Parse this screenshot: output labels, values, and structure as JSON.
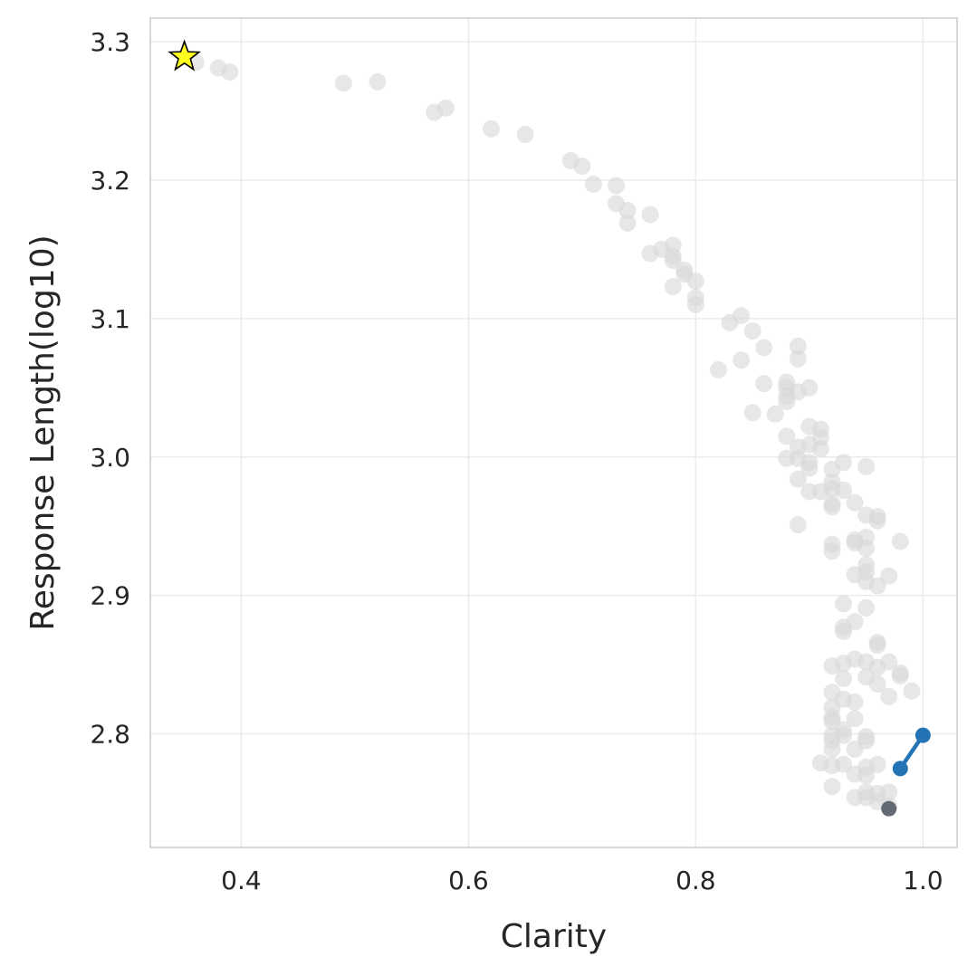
{
  "chart_data": {
    "type": "scatter",
    "title": "",
    "xlabel": "Clarity",
    "ylabel": "Response Length(log10)",
    "xlim": [
      0.32,
      1.03
    ],
    "ylim": [
      2.718,
      3.317
    ],
    "xticks": [
      0.4,
      0.6,
      0.8,
      1.0
    ],
    "xtick_labels": [
      "0.4",
      "0.6",
      "0.8",
      "1.0"
    ],
    "yticks": [
      2.8,
      2.9,
      3.0,
      3.1,
      3.2,
      3.3
    ],
    "ytick_labels": [
      "2.8",
      "2.9",
      "3.0",
      "3.1",
      "3.2",
      "3.3"
    ],
    "grid": true,
    "legend": "none",
    "series": [
      {
        "role": "background",
        "color": "#d9d9d9",
        "points": [
          [
            0.36,
            3.285
          ],
          [
            0.38,
            3.281
          ],
          [
            0.39,
            3.278
          ],
          [
            0.49,
            3.27
          ],
          [
            0.52,
            3.271
          ],
          [
            0.57,
            3.249
          ],
          [
            0.58,
            3.252
          ],
          [
            0.62,
            3.237
          ],
          [
            0.65,
            3.233
          ],
          [
            0.69,
            3.214
          ],
          [
            0.7,
            3.21
          ],
          [
            0.71,
            3.197
          ],
          [
            0.73,
            3.196
          ],
          [
            0.73,
            3.183
          ],
          [
            0.74,
            3.178
          ],
          [
            0.74,
            3.169
          ],
          [
            0.76,
            3.175
          ],
          [
            0.76,
            3.147
          ],
          [
            0.77,
            3.15
          ],
          [
            0.78,
            3.153
          ],
          [
            0.78,
            3.145
          ],
          [
            0.78,
            3.142
          ],
          [
            0.78,
            3.123
          ],
          [
            0.79,
            3.135
          ],
          [
            0.79,
            3.132
          ],
          [
            0.8,
            3.127
          ],
          [
            0.8,
            3.115
          ],
          [
            0.8,
            3.11
          ],
          [
            0.83,
            3.097
          ],
          [
            0.84,
            3.102
          ],
          [
            0.84,
            3.07
          ],
          [
            0.85,
            3.091
          ],
          [
            0.86,
            3.079
          ],
          [
            0.82,
            3.063
          ],
          [
            0.86,
            3.053
          ],
          [
            0.88,
            3.054
          ],
          [
            0.88,
            3.05
          ],
          [
            0.88,
            3.044
          ],
          [
            0.88,
            3.04
          ],
          [
            0.89,
            3.08
          ],
          [
            0.89,
            3.071
          ],
          [
            0.89,
            3.047
          ],
          [
            0.9,
            3.05
          ],
          [
            0.85,
            3.032
          ],
          [
            0.87,
            3.031
          ],
          [
            0.88,
            3.015
          ],
          [
            0.89,
            3.007
          ],
          [
            0.88,
            2.999
          ],
          [
            0.89,
            2.999
          ],
          [
            0.9,
            3.022
          ],
          [
            0.9,
            3.009
          ],
          [
            0.9,
            2.996
          ],
          [
            0.9,
            2.992
          ],
          [
            0.91,
            3.02
          ],
          [
            0.91,
            3.014
          ],
          [
            0.91,
            3.006
          ],
          [
            0.89,
            2.984
          ],
          [
            0.9,
            2.975
          ],
          [
            0.91,
            2.975
          ],
          [
            0.92,
            2.991
          ],
          [
            0.92,
            2.982
          ],
          [
            0.92,
            2.977
          ],
          [
            0.92,
            2.966
          ],
          [
            0.92,
            2.964
          ],
          [
            0.93,
            2.996
          ],
          [
            0.93,
            2.976
          ],
          [
            0.95,
            2.993
          ],
          [
            0.94,
            2.967
          ],
          [
            0.95,
            2.958
          ],
          [
            0.96,
            2.957
          ],
          [
            0.96,
            2.954
          ],
          [
            0.89,
            2.951
          ],
          [
            0.98,
            2.939
          ],
          [
            0.92,
            2.937
          ],
          [
            0.92,
            2.932
          ],
          [
            0.94,
            2.94
          ],
          [
            0.94,
            2.938
          ],
          [
            0.95,
            2.942
          ],
          [
            0.95,
            2.934
          ],
          [
            0.95,
            2.922
          ],
          [
            0.95,
            2.917
          ],
          [
            0.94,
            2.915
          ],
          [
            0.95,
            2.91
          ],
          [
            0.96,
            2.907
          ],
          [
            0.97,
            2.914
          ],
          [
            0.93,
            2.894
          ],
          [
            0.95,
            2.891
          ],
          [
            0.94,
            2.881
          ],
          [
            0.93,
            2.877
          ],
          [
            0.93,
            2.874
          ],
          [
            0.96,
            2.866
          ],
          [
            0.96,
            2.864
          ],
          [
            0.92,
            2.849
          ],
          [
            0.93,
            2.851
          ],
          [
            0.94,
            2.854
          ],
          [
            0.95,
            2.852
          ],
          [
            0.96,
            2.848
          ],
          [
            0.97,
            2.852
          ],
          [
            0.98,
            2.844
          ],
          [
            0.98,
            2.842
          ],
          [
            0.93,
            2.84
          ],
          [
            0.95,
            2.841
          ],
          [
            0.96,
            2.836
          ],
          [
            0.92,
            2.83
          ],
          [
            0.93,
            2.825
          ],
          [
            0.94,
            2.823
          ],
          [
            0.97,
            2.827
          ],
          [
            0.99,
            2.831
          ],
          [
            0.92,
            2.819
          ],
          [
            0.92,
            2.812
          ],
          [
            0.92,
            2.809
          ],
          [
            0.94,
            2.811
          ],
          [
            0.93,
            2.803
          ],
          [
            0.93,
            2.799
          ],
          [
            0.92,
            2.799
          ],
          [
            0.92,
            2.795
          ],
          [
            0.95,
            2.798
          ],
          [
            0.95,
            2.795
          ],
          [
            0.92,
            2.789
          ],
          [
            0.94,
            2.789
          ],
          [
            0.91,
            2.779
          ],
          [
            0.92,
            2.777
          ],
          [
            0.93,
            2.778
          ],
          [
            0.95,
            2.776
          ],
          [
            0.96,
            2.778
          ],
          [
            0.94,
            2.771
          ],
          [
            0.95,
            2.77
          ],
          [
            0.92,
            2.762
          ],
          [
            0.95,
            2.758
          ],
          [
            0.96,
            2.757
          ],
          [
            0.97,
            2.758
          ],
          [
            0.94,
            2.754
          ],
          [
            0.95,
            2.754
          ],
          [
            0.96,
            2.751
          ],
          [
            0.97,
            2.748
          ]
        ]
      },
      {
        "role": "highlight-point",
        "color": "#646a73",
        "points": [
          [
            0.97,
            2.746
          ]
        ]
      },
      {
        "role": "highlight-line",
        "color": "#2474b5",
        "points": [
          [
            0.98,
            2.775
          ],
          [
            1.0,
            2.799
          ]
        ]
      },
      {
        "role": "star-marker",
        "color": "#ffff1f",
        "edge_color": "#000000",
        "points": [
          [
            0.35,
            3.289
          ]
        ]
      }
    ]
  }
}
